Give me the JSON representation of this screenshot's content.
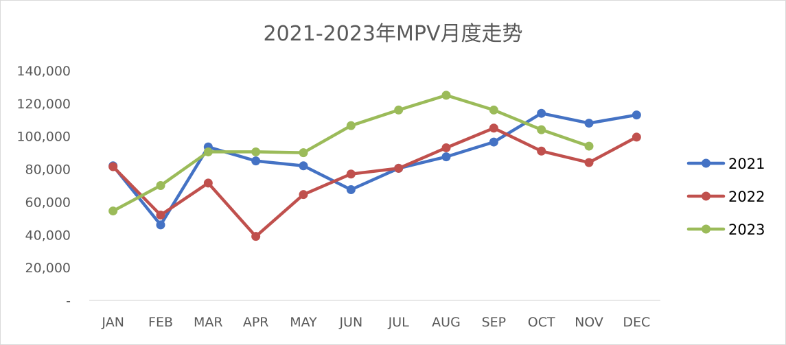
{
  "chart_data": {
    "type": "line",
    "title": "2021-2023年MPV月度走势",
    "categories": [
      "JAN",
      "FEB",
      "MAR",
      "APR",
      "MAY",
      "JUN",
      "JUL",
      "AUG",
      "SEP",
      "OCT",
      "NOV",
      "DEC"
    ],
    "ylim": [
      0,
      140000
    ],
    "yticks": [
      0,
      20000,
      40000,
      60000,
      80000,
      100000,
      120000,
      140000
    ],
    "ytick_labels": [
      "-",
      "20,000",
      "40,000",
      "60,000",
      "80,000",
      "100,000",
      "120,000",
      "140,000"
    ],
    "grid": false,
    "legend_position": "right",
    "series": [
      {
        "name": "2021",
        "color": "#4472c4",
        "values": [
          82000,
          46000,
          93500,
          85000,
          82000,
          67500,
          80500,
          87500,
          96500,
          114000,
          108000,
          113000
        ]
      },
      {
        "name": "2022",
        "color": "#c0504d",
        "values": [
          81500,
          52000,
          71500,
          39000,
          64500,
          77000,
          80500,
          93000,
          105000,
          91000,
          84000,
          99500
        ]
      },
      {
        "name": "2023",
        "color": "#9bbb59",
        "values": [
          54500,
          70000,
          90500,
          90500,
          90000,
          106500,
          116000,
          125000,
          116000,
          104000,
          94000,
          null
        ]
      }
    ]
  }
}
